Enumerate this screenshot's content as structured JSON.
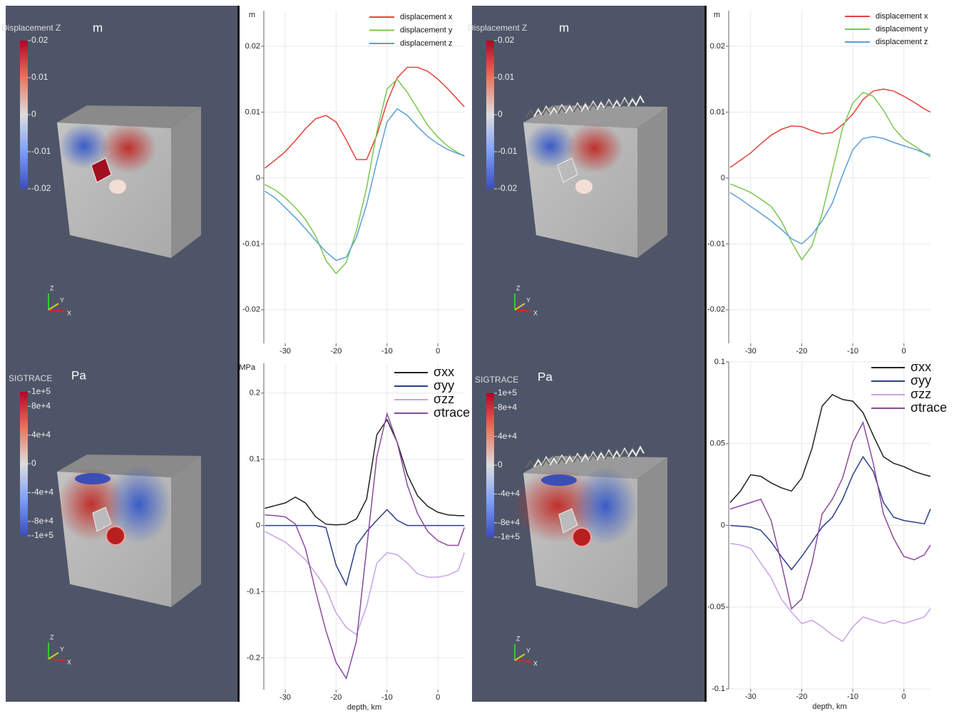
{
  "render_panels": [
    {
      "colorbar_title": "Displacement Z",
      "unit": "m",
      "range": [
        -0.02,
        0.02
      ],
      "ticks": [
        0.02,
        0.01,
        0,
        -0.01,
        -0.02
      ],
      "axes": [
        "Z",
        "Y",
        "X"
      ]
    },
    {
      "colorbar_title": "SIGTRACE",
      "unit": "Pa",
      "range": [
        -100000,
        100000
      ],
      "ticks": [
        {
          "value": 100000,
          "label": "1e+5"
        },
        {
          "value": 80000,
          "label": "8e+4"
        },
        {
          "value": 40000,
          "label": "4e+4"
        },
        0,
        {
          "value": -40000,
          "label": "-4e+4"
        },
        {
          "value": -80000,
          "label": "-8e+4"
        },
        {
          "value": -100000,
          "label": "-1e+5"
        }
      ],
      "axes": [
        "Z",
        "Y",
        "X"
      ]
    },
    {
      "colorbar_title": "Displacement Z",
      "unit": "m",
      "range": [
        -0.02,
        0.02
      ],
      "ticks": [
        0.02,
        0.01,
        0,
        -0.01,
        -0.02
      ],
      "axes": [
        "Z",
        "Y",
        "X"
      ]
    },
    {
      "colorbar_title": "SIGTRACE",
      "unit": "Pa",
      "range": [
        -100000,
        100000
      ],
      "ticks": [
        {
          "value": 100000,
          "label": "1e+5"
        },
        {
          "value": 80000,
          "label": "8e+4"
        },
        {
          "value": 40000,
          "label": "4e+4"
        },
        0,
        {
          "value": -40000,
          "label": "-4e+4"
        },
        {
          "value": -80000,
          "label": "-8e+4"
        },
        {
          "value": -100000,
          "label": "-1e+5"
        }
      ],
      "axes": [
        "Z",
        "Y",
        "X"
      ]
    }
  ],
  "chart_data": [
    {
      "type": "line",
      "ylabel": "m",
      "grid": true,
      "xlim": [
        -34.2,
        5.3
      ],
      "ylim": [
        -0.0251,
        0.0254
      ],
      "xticks": [
        -30,
        -20,
        -10,
        0
      ],
      "yticks": [
        0.02,
        0.01,
        0,
        -0.01,
        -0.02
      ],
      "x": [
        -34,
        -32,
        -30,
        -28,
        -26,
        -24,
        -22,
        -20,
        -18,
        -16,
        -14,
        -12,
        -10,
        -8,
        -6,
        -4,
        -2,
        0,
        2,
        4,
        5.2
      ],
      "series": [
        {
          "name": "displacement x",
          "color": "#e8413a",
          "values": [
            0.0015,
            0.0027,
            0.004,
            0.0057,
            0.0075,
            0.009,
            0.0095,
            0.0085,
            0.0058,
            0.0028,
            0.0028,
            0.0065,
            0.0115,
            0.0152,
            0.0168,
            0.0168,
            0.0162,
            0.015,
            0.0135,
            0.0118,
            0.0108
          ]
        },
        {
          "name": "displacement y",
          "color": "#7ac74f",
          "values": [
            -0.001,
            -0.0018,
            -0.003,
            -0.0045,
            -0.0063,
            -0.0088,
            -0.0125,
            -0.0145,
            -0.0128,
            -0.008,
            -0.0015,
            0.007,
            0.0135,
            0.015,
            0.013,
            0.0105,
            0.008,
            0.0062,
            0.0048,
            0.0038,
            0.0033
          ]
        },
        {
          "name": "displacement z",
          "color": "#5a9fd4",
          "values": [
            -0.002,
            -0.003,
            -0.0045,
            -0.006,
            -0.0077,
            -0.0095,
            -0.0112,
            -0.0125,
            -0.012,
            -0.009,
            -0.004,
            0.0025,
            0.0085,
            0.0105,
            0.0095,
            0.0078,
            0.0063,
            0.0052,
            0.0043,
            0.0037,
            0.0034
          ]
        }
      ]
    },
    {
      "type": "line",
      "ylabel": "MPa",
      "xlabel": "depth, km",
      "grid": true,
      "xlim": [
        -34.2,
        5.3
      ],
      "ylim": [
        -0.248,
        0.245
      ],
      "xticks": [
        -30,
        -20,
        -10,
        0
      ],
      "yticks": [
        0.2,
        0.1,
        0,
        -0.1,
        -0.2
      ],
      "x": [
        -34,
        -32,
        -30,
        -28,
        -26,
        -24,
        -22,
        -20,
        -18,
        -16,
        -14,
        -12,
        -10,
        -8,
        -6,
        -4,
        -2,
        0,
        2,
        4,
        5.2
      ],
      "series": [
        {
          "name": "σxx",
          "color": "#222222",
          "values": [
            0.026,
            0.03,
            0.034,
            0.043,
            0.034,
            0.013,
            0.002,
            0.001,
            0.002,
            0.01,
            0.04,
            0.137,
            0.16,
            0.126,
            0.077,
            0.045,
            0.029,
            0.02,
            0.016,
            0.015,
            0.015
          ]
        },
        {
          "name": "σyy",
          "color": "#2b3f8c",
          "values": [
            0,
            0,
            0,
            0,
            0,
            0,
            -0.003,
            -0.06,
            -0.09,
            -0.03,
            -0.009,
            0.008,
            0.024,
            0.008,
            0,
            0,
            0,
            0,
            0,
            0,
            0
          ]
        },
        {
          "name": "σzz",
          "color": "#c9a3e6",
          "values": [
            -0.009,
            -0.017,
            -0.025,
            -0.038,
            -0.052,
            -0.072,
            -0.095,
            -0.132,
            -0.154,
            -0.165,
            -0.122,
            -0.057,
            -0.041,
            -0.044,
            -0.057,
            -0.073,
            -0.078,
            -0.078,
            -0.075,
            -0.068,
            -0.041
          ]
        },
        {
          "name": "σtrace",
          "color": "#8b4a9e",
          "values": [
            0.016,
            0.015,
            0.013,
            0.002,
            -0.035,
            -0.1,
            -0.159,
            -0.207,
            -0.231,
            -0.175,
            -0.035,
            0.104,
            0.169,
            0.126,
            0.061,
            0.018,
            -0.009,
            -0.023,
            -0.03,
            -0.03,
            -0.003
          ]
        }
      ]
    },
    {
      "type": "line",
      "ylabel": "m",
      "grid": true,
      "xlim": [
        -34.3,
        5.2
      ],
      "ylim": [
        -0.0251,
        0.0254
      ],
      "xticks": [
        -30,
        -20,
        -10,
        0
      ],
      "yticks": [
        0.02,
        0.01,
        0,
        -0.01,
        -0.02
      ],
      "x": [
        -34,
        -32,
        -30,
        -28,
        -26,
        -24,
        -22,
        -20,
        -18,
        -16,
        -14,
        -12,
        -10,
        -8,
        -6,
        -4,
        -2,
        0,
        2,
        4,
        5.2
      ],
      "series": [
        {
          "name": "displacement x",
          "color": "#e8413a",
          "values": [
            0.0016,
            0.0027,
            0.0038,
            0.0052,
            0.0065,
            0.0074,
            0.0079,
            0.0078,
            0.0072,
            0.0067,
            0.0069,
            0.0081,
            0.0097,
            0.0119,
            0.0132,
            0.0135,
            0.0132,
            0.0124,
            0.0115,
            0.0105,
            0.01
          ]
        },
        {
          "name": "displacement y",
          "color": "#7ac74f",
          "values": [
            -0.0009,
            -0.0015,
            -0.0022,
            -0.0032,
            -0.0043,
            -0.0065,
            -0.0097,
            -0.0124,
            -0.0103,
            -0.0054,
            0.0011,
            0.0076,
            0.0114,
            0.013,
            0.0124,
            0.0103,
            0.0076,
            0.0059,
            0.0049,
            0.0038,
            0.0032
          ]
        },
        {
          "name": "displacement z",
          "color": "#5a9fd4",
          "values": [
            -0.0022,
            -0.0032,
            -0.0043,
            -0.0054,
            -0.0065,
            -0.0078,
            -0.0092,
            -0.01,
            -0.0086,
            -0.0065,
            -0.0038,
            0.0005,
            0.0043,
            0.006,
            0.0063,
            0.006,
            0.0054,
            0.0049,
            0.0044,
            0.0038,
            0.0035
          ]
        }
      ]
    },
    {
      "type": "line",
      "xlabel": "depth, km",
      "grid": true,
      "xlim": [
        -34.3,
        5.2
      ],
      "ylim": [
        -0.1,
        0.1
      ],
      "xticks": [
        -30,
        -20,
        -10,
        0
      ],
      "yticks": [
        0.1,
        0.05,
        0,
        -0.05,
        -0.1
      ],
      "x": [
        -34,
        -32,
        -30,
        -28,
        -26,
        -24,
        -22,
        -20,
        -18,
        -16,
        -14,
        -12,
        -10,
        -8,
        -6,
        -4,
        -2,
        0,
        2,
        4,
        5.2
      ],
      "series": [
        {
          "name": "σxx",
          "color": "#222222",
          "values": [
            0.014,
            0.021,
            0.031,
            0.03,
            0.026,
            0.023,
            0.021,
            0.029,
            0.047,
            0.073,
            0.08,
            0.077,
            0.076,
            0.069,
            0.055,
            0.042,
            0.038,
            0.036,
            0.033,
            0.031,
            0.03
          ]
        },
        {
          "name": "σyy",
          "color": "#2b3f8c",
          "values": [
            0,
            -0.0005,
            -0.001,
            -0.003,
            -0.01,
            -0.019,
            -0.027,
            -0.019,
            -0.01,
            -0.001,
            0.005,
            0.016,
            0.031,
            0.042,
            0.033,
            0.014,
            0.005,
            0.003,
            0.002,
            0.001,
            0.01
          ]
        },
        {
          "name": "σzz",
          "color": "#c9a3e6",
          "values": [
            -0.011,
            -0.012,
            -0.014,
            -0.023,
            -0.032,
            -0.045,
            -0.053,
            -0.06,
            -0.058,
            -0.062,
            -0.067,
            -0.071,
            -0.062,
            -0.056,
            -0.058,
            -0.06,
            -0.058,
            -0.06,
            -0.058,
            -0.056,
            -0.051
          ]
        },
        {
          "name": "σtrace",
          "color": "#8b4a9e",
          "values": [
            0.01,
            0.012,
            0.014,
            0.016,
            0.003,
            -0.023,
            -0.051,
            -0.045,
            -0.023,
            0.007,
            0.016,
            0.029,
            0.051,
            0.063,
            0.038,
            0.007,
            -0.008,
            -0.019,
            -0.021,
            -0.018,
            -0.012
          ]
        }
      ]
    }
  ]
}
